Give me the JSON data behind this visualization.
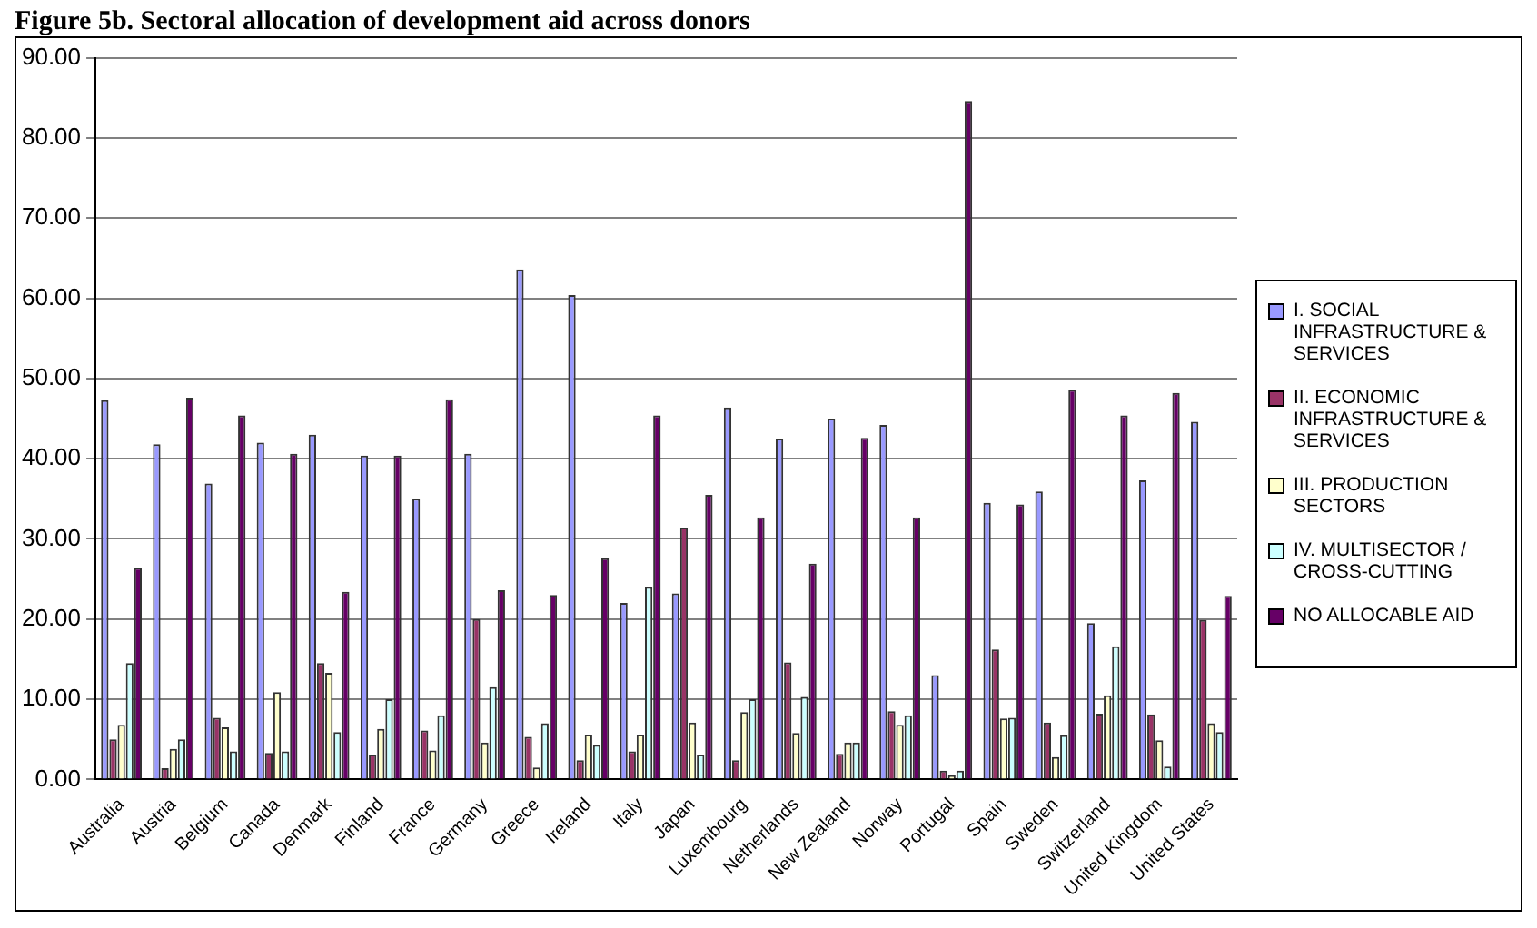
{
  "chart_data": {
    "type": "bar",
    "title": "Figure 5b. Sectoral allocation of development aid across donors",
    "categories": [
      "Australia",
      "Austria",
      "Belgium",
      "Canada",
      "Denmark",
      "Finland",
      "France",
      "Germany",
      "Greece",
      "Ireland",
      "Italy",
      "Japan",
      "Luxembourg",
      "Netherlands",
      "New Zealand",
      "Norway",
      "Portugal",
      "Spain",
      "Sweden",
      "Switzerland",
      "United Kingdom",
      "United States"
    ],
    "series": [
      {
        "name": "I. SOCIAL INFRASTRUCTURE & SERVICES",
        "color": "#9999ff",
        "values": [
          47.3,
          41.8,
          36.9,
          42.0,
          43.0,
          40.4,
          35.0,
          40.6,
          63.6,
          60.4,
          22.0,
          23.2,
          46.4,
          42.5,
          45.0,
          44.2,
          13.0,
          34.5,
          35.9,
          19.5,
          37.3,
          44.6
        ]
      },
      {
        "name": "II. ECONOMIC INFRASTRUCTURE & SERVICES",
        "color": "#993366",
        "values": [
          5.0,
          1.4,
          7.7,
          3.3,
          14.5,
          3.1,
          6.1,
          20.0,
          5.3,
          2.4,
          3.5,
          31.4,
          2.4,
          14.6,
          3.2,
          8.5,
          1.1,
          16.2,
          7.1,
          8.2,
          8.1,
          19.9
        ]
      },
      {
        "name": "III. PRODUCTION SECTORS",
        "color": "#ffffcc",
        "values": [
          6.8,
          3.8,
          6.5,
          10.9,
          13.3,
          6.3,
          3.6,
          4.6,
          1.5,
          5.6,
          5.6,
          7.1,
          8.4,
          5.8,
          4.6,
          6.8,
          0.5,
          7.6,
          2.8,
          10.5,
          4.9,
          7.0
        ]
      },
      {
        "name": "IV. MULTISECTOR / CROSS-CUTTING",
        "color": "#ccffff",
        "values": [
          14.5,
          5.0,
          3.5,
          3.5,
          5.9,
          10.0,
          8.0,
          11.5,
          7.0,
          4.3,
          24.0,
          3.1,
          10.0,
          10.3,
          4.6,
          8.0,
          1.1,
          7.7,
          5.5,
          16.6,
          1.6,
          5.9
        ]
      },
      {
        "name": "NO ALLOCABLE AID",
        "color": "#660066",
        "values": [
          26.4,
          47.6,
          45.4,
          40.6,
          23.4,
          40.4,
          47.4,
          23.6,
          23.0,
          27.6,
          45.4,
          35.5,
          32.7,
          26.9,
          42.6,
          32.7,
          84.6,
          34.3,
          48.6,
          45.4,
          48.2,
          22.9
        ]
      }
    ],
    "ylim": [
      0,
      90
    ],
    "yticks": [
      {
        "value": 0,
        "label": "0.00"
      },
      {
        "value": 10,
        "label": "10.00"
      },
      {
        "value": 20,
        "label": "20.00"
      },
      {
        "value": 30,
        "label": "30.00"
      },
      {
        "value": 40,
        "label": "40.00"
      },
      {
        "value": 50,
        "label": "50.00"
      },
      {
        "value": 60,
        "label": "60.00"
      },
      {
        "value": 70,
        "label": "70.00"
      },
      {
        "value": 80,
        "label": "80.00"
      },
      {
        "value": 90,
        "label": "90.00"
      }
    ],
    "grid": "y",
    "legend": "right"
  }
}
